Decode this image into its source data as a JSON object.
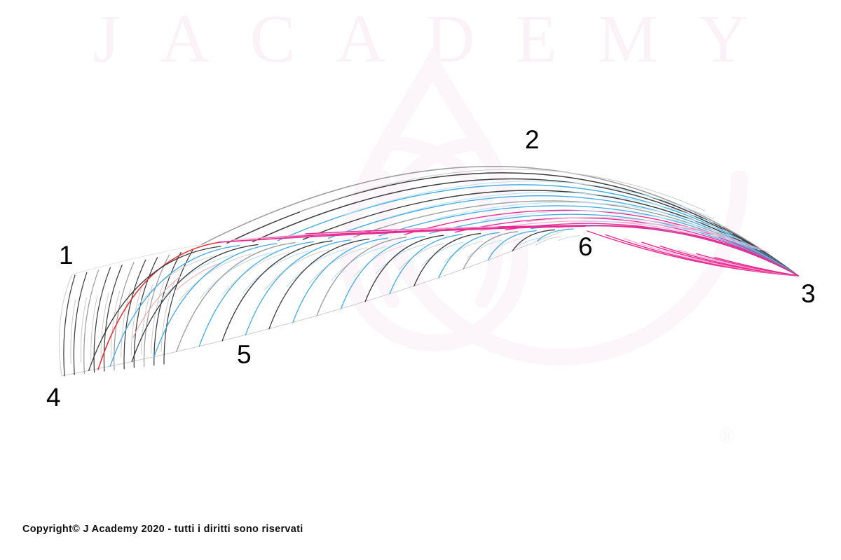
{
  "page": {
    "background": "#ffffff"
  },
  "watermark": {
    "text": "JACADEMY",
    "registered_mark": "®",
    "color": "#faf2f7"
  },
  "diagram": {
    "point_labels": [
      {
        "text": "1"
      },
      {
        "text": "2"
      },
      {
        "text": "3"
      },
      {
        "text": "4"
      },
      {
        "text": "5"
      },
      {
        "text": "6"
      }
    ],
    "colors": {
      "hair_dark": "#3d3d3d",
      "hair_gray": "#9c9c9c",
      "hair_faint": "#c9c9c9",
      "hair_blue": "#47ace3",
      "hair_blue_light": "#b9e0f5",
      "hair_red": "#e63535",
      "hair_red_light": "#f3adb1",
      "hair_magenta": "#e72a92",
      "hair_magenta_light": "#f4aed5",
      "outline": "#cfcfcf",
      "watermark_pink": "#fcf6fa"
    }
  },
  "footer": {
    "copyright": "Copyright© J Academy 2020 - tutti i diritti sono riservati"
  }
}
